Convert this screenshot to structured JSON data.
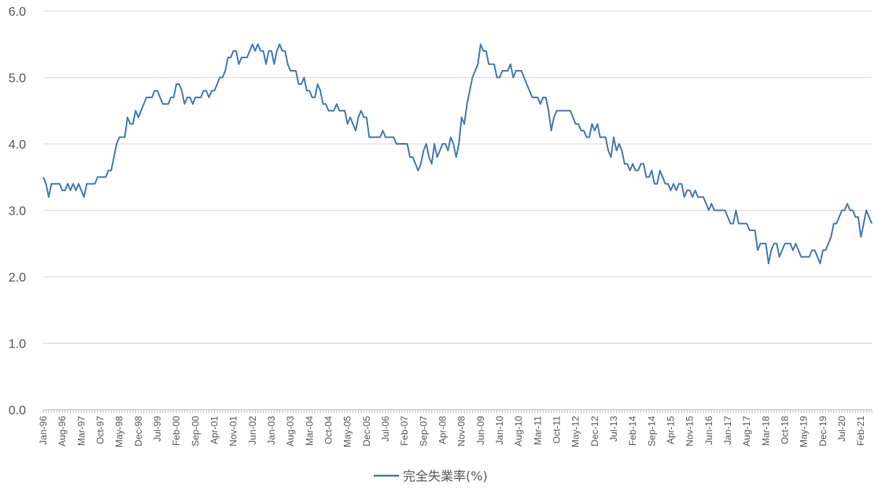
{
  "chart_data": {
    "type": "line",
    "title": "",
    "xlabel": "",
    "ylabel": "",
    "ylim": [
      0,
      6
    ],
    "yticks": [
      "0.0",
      "1.0",
      "2.0",
      "3.0",
      "4.0",
      "5.0",
      "6.0"
    ],
    "grid": "horizontal",
    "legend": "bottom-center",
    "xticks": [
      "Jan-96",
      "Aug-96",
      "Mar-97",
      "Oct-97",
      "May-98",
      "Dec-98",
      "Jul-99",
      "Feb-00",
      "Sep-00",
      "Apr-01",
      "Nov-01",
      "Jun-02",
      "Jan-03",
      "Aug-03",
      "Mar-04",
      "Oct-04",
      "May-05",
      "Dec-05",
      "Jul-06",
      "Feb-07",
      "Sep-07",
      "Apr-08",
      "Nov-08",
      "Jun-09",
      "Jan-10",
      "Aug-10",
      "Mar-11",
      "Oct-11",
      "May-12",
      "Dec-12",
      "Jul-13",
      "Feb-14",
      "Sep-14",
      "Apr-15",
      "Nov-15",
      "Jun-16",
      "Jan-17",
      "Aug-17",
      "Mar-18",
      "Oct-18",
      "May-19",
      "Dec-19",
      "Jul-20",
      "Feb-21"
    ],
    "x_start": "Jan-96",
    "x_end": "Jun-21",
    "series": [
      {
        "name": "完全失業率(%)",
        "color": "#4a7ab0",
        "values": [
          3.5,
          3.4,
          3.2,
          3.4,
          3.4,
          3.4,
          3.4,
          3.3,
          3.3,
          3.4,
          3.3,
          3.4,
          3.3,
          3.4,
          3.3,
          3.2,
          3.4,
          3.4,
          3.4,
          3.4,
          3.5,
          3.5,
          3.5,
          3.5,
          3.6,
          3.6,
          3.8,
          4.0,
          4.1,
          4.1,
          4.1,
          4.4,
          4.3,
          4.3,
          4.5,
          4.4,
          4.5,
          4.6,
          4.7,
          4.7,
          4.7,
          4.8,
          4.8,
          4.7,
          4.6,
          4.6,
          4.6,
          4.7,
          4.7,
          4.9,
          4.9,
          4.8,
          4.6,
          4.7,
          4.7,
          4.6,
          4.7,
          4.7,
          4.7,
          4.8,
          4.8,
          4.7,
          4.8,
          4.8,
          4.9,
          5.0,
          5.0,
          5.1,
          5.3,
          5.3,
          5.4,
          5.4,
          5.2,
          5.3,
          5.3,
          5.3,
          5.4,
          5.5,
          5.4,
          5.5,
          5.4,
          5.4,
          5.2,
          5.4,
          5.4,
          5.2,
          5.4,
          5.5,
          5.4,
          5.4,
          5.2,
          5.1,
          5.1,
          5.1,
          4.9,
          4.9,
          5.0,
          4.8,
          4.8,
          4.7,
          4.7,
          4.9,
          4.8,
          4.6,
          4.6,
          4.5,
          4.5,
          4.5,
          4.6,
          4.5,
          4.5,
          4.5,
          4.3,
          4.4,
          4.3,
          4.2,
          4.4,
          4.5,
          4.4,
          4.4,
          4.1,
          4.1,
          4.1,
          4.1,
          4.1,
          4.2,
          4.1,
          4.1,
          4.1,
          4.1,
          4.0,
          4.0,
          4.0,
          4.0,
          4.0,
          3.8,
          3.8,
          3.7,
          3.6,
          3.7,
          3.9,
          4.0,
          3.8,
          3.7,
          4.0,
          3.8,
          3.9,
          4.0,
          4.0,
          3.9,
          4.1,
          4.0,
          3.8,
          4.0,
          4.4,
          4.3,
          4.6,
          4.8,
          5.0,
          5.1,
          5.2,
          5.5,
          5.4,
          5.4,
          5.2,
          5.2,
          5.2,
          5.0,
          5.0,
          5.1,
          5.1,
          5.1,
          5.2,
          5.0,
          5.1,
          5.1,
          5.1,
          5.0,
          4.9,
          4.8,
          4.7,
          4.7,
          4.7,
          4.6,
          4.7,
          4.7,
          4.5,
          4.2,
          4.4,
          4.5,
          4.5,
          4.5,
          4.5,
          4.5,
          4.5,
          4.4,
          4.3,
          4.3,
          4.2,
          4.2,
          4.1,
          4.1,
          4.3,
          4.2,
          4.3,
          4.1,
          4.1,
          4.1,
          3.9,
          3.8,
          4.1,
          3.9,
          4.0,
          3.9,
          3.7,
          3.7,
          3.6,
          3.7,
          3.6,
          3.6,
          3.7,
          3.7,
          3.5,
          3.5,
          3.6,
          3.4,
          3.4,
          3.6,
          3.5,
          3.4,
          3.4,
          3.3,
          3.4,
          3.3,
          3.4,
          3.4,
          3.2,
          3.3,
          3.3,
          3.2,
          3.3,
          3.2,
          3.2,
          3.2,
          3.1,
          3.0,
          3.1,
          3.0,
          3.0,
          3.0,
          3.0,
          3.0,
          2.9,
          2.8,
          2.8,
          3.0,
          2.8,
          2.8,
          2.8,
          2.8,
          2.7,
          2.7,
          2.7,
          2.4,
          2.5,
          2.5,
          2.5,
          2.2,
          2.4,
          2.5,
          2.5,
          2.3,
          2.4,
          2.5,
          2.5,
          2.5,
          2.4,
          2.5,
          2.4,
          2.3,
          2.3,
          2.3,
          2.3,
          2.4,
          2.4,
          2.3,
          2.2,
          2.4,
          2.4,
          2.5,
          2.6,
          2.8,
          2.8,
          2.9,
          3.0,
          3.0,
          3.1,
          3.0,
          3.0,
          2.9,
          2.9,
          2.6,
          2.8,
          3.0,
          2.9,
          2.8
        ]
      }
    ]
  }
}
